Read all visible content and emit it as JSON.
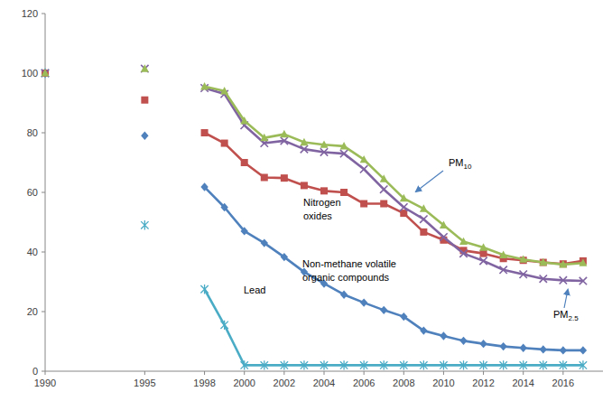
{
  "chart_data": {
    "type": "line",
    "x": [
      1990,
      1991,
      1992,
      1993,
      1994,
      1995,
      1996,
      1997,
      1998,
      1999,
      2000,
      2001,
      2002,
      2003,
      2004,
      2005,
      2006,
      2007,
      2008,
      2009,
      2010,
      2011,
      2012,
      2013,
      2014,
      2015,
      2016,
      2017
    ],
    "xlim": [
      1990,
      2018
    ],
    "xticks": [
      1990,
      1995,
      1998,
      2000,
      2002,
      2004,
      2006,
      2008,
      2010,
      2012,
      2014,
      2016
    ],
    "ylim": [
      0,
      120
    ],
    "yticks": [
      0,
      20,
      40,
      60,
      80,
      100,
      120
    ],
    "grid": false,
    "series": [
      {
        "name": "Non-methane volatile organic compounds",
        "color": "#4f81bd",
        "marker": "diamond",
        "line_style": "solid",
        "values": [
          100,
          null,
          null,
          null,
          null,
          79,
          null,
          null,
          61.8,
          55,
          47,
          43,
          38.3,
          33.3,
          29.4,
          25.7,
          23,
          20.5,
          18.3,
          13.6,
          11.8,
          10.2,
          9.2,
          8.3,
          7.8,
          7.3,
          7,
          7
        ]
      },
      {
        "name": "Nitrogen oxides",
        "color": "#c0504d",
        "marker": "square",
        "line_style": "solid",
        "values": [
          100,
          null,
          null,
          null,
          null,
          91,
          null,
          null,
          80,
          76.5,
          70,
          65,
          64.8,
          62.3,
          60.5,
          60,
          56.2,
          56.2,
          53,
          46.7,
          44,
          40.5,
          39.5,
          37.8,
          37.2,
          36.5,
          36,
          37
        ]
      },
      {
        "name": "PM10",
        "color": "#9bbb59",
        "marker": "triangle",
        "line_style": "solid",
        "values": [
          100,
          null,
          null,
          null,
          null,
          101.5,
          null,
          null,
          95.5,
          94,
          84,
          78.3,
          79.5,
          76.8,
          76,
          75.5,
          71,
          64.5,
          58,
          54.5,
          49,
          43.5,
          41.5,
          39,
          37.5,
          36.5,
          35.8,
          36.3
        ]
      },
      {
        "name": "PM2.5",
        "color": "#8064a2",
        "marker": "x",
        "line_style": "solid",
        "values": [
          100,
          null,
          null,
          null,
          null,
          101.5,
          null,
          null,
          95,
          93,
          82.5,
          76.5,
          77.3,
          74.5,
          73.5,
          73,
          67.8,
          61,
          55,
          51,
          45,
          39.5,
          37,
          34,
          32.5,
          31,
          30.5,
          30.3
        ]
      },
      {
        "name": "Lead",
        "color": "#4bacc6",
        "marker": "asterisk",
        "line_style": "solid",
        "values": [
          100,
          null,
          null,
          null,
          null,
          49,
          null,
          null,
          27.5,
          15.5,
          2,
          2,
          2,
          2,
          2,
          2,
          2,
          2,
          2,
          2,
          2,
          2,
          2,
          2,
          2,
          2,
          2,
          2
        ]
      }
    ]
  }
}
